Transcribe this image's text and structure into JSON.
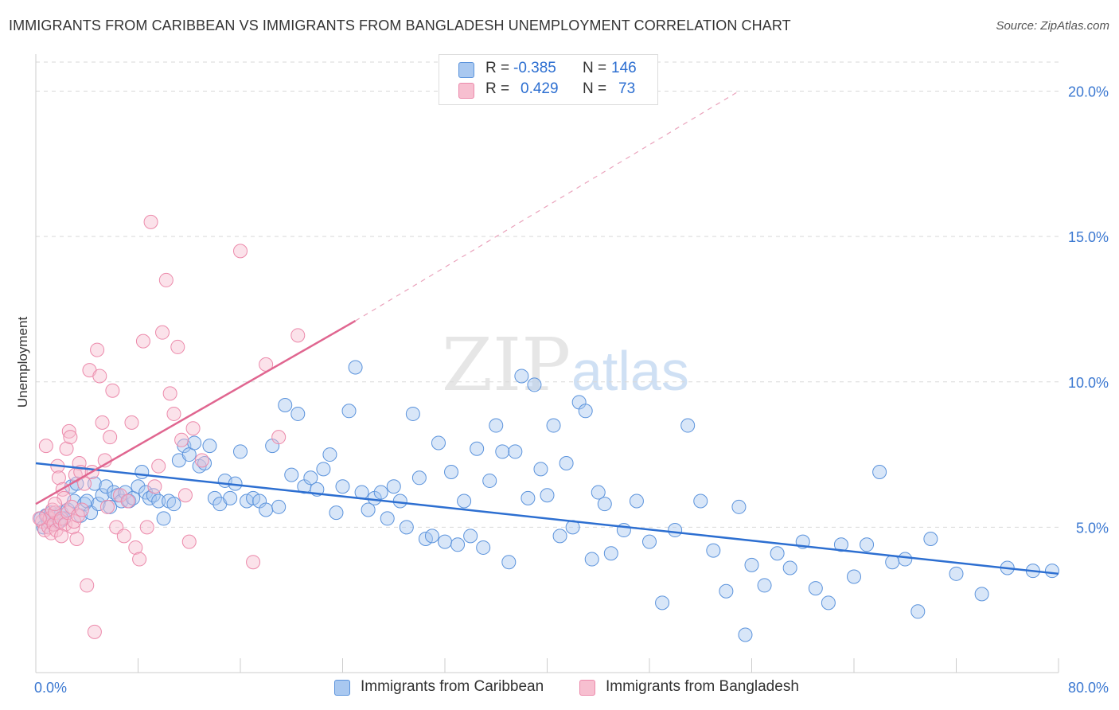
{
  "title": "IMMIGRANTS FROM CARIBBEAN VS IMMIGRANTS FROM BANGLADESH UNEMPLOYMENT CORRELATION CHART",
  "source": "Source: ZipAtlas.com",
  "watermark": {
    "zip": "ZIP",
    "atlas": "atlas"
  },
  "legend": {
    "r_label": "R =",
    "n_label": "N =",
    "series1": {
      "r": "-0.385",
      "n": "146"
    },
    "series2": {
      "r": "0.429",
      "n": "73"
    }
  },
  "colors": {
    "blue_fill": "#a9c8f0",
    "blue_stroke": "#5b93dc",
    "blue_line": "#2d6fd1",
    "pink_fill": "#f7bfd0",
    "pink_stroke": "#ec8aab",
    "pink_line": "#e06690",
    "tick_label": "#3b78d1",
    "grid": "#d9d9d9"
  },
  "chart_data": {
    "type": "scatter",
    "title": "IMMIGRANTS FROM CARIBBEAN VS IMMIGRANTS FROM BANGLADESH UNEMPLOYMENT CORRELATION CHART",
    "xlabel": "",
    "ylabel": "Unemployment",
    "xlim": [
      0,
      80
    ],
    "ylim": [
      0,
      21
    ],
    "x_tick_labels": [
      "0.0%",
      "80.0%"
    ],
    "y_ticks": [
      5,
      10,
      15,
      20
    ],
    "y_tick_labels": [
      "5.0%",
      "10.0%",
      "15.0%",
      "20.0%"
    ],
    "legend_position": "bottom",
    "series": [
      {
        "name": "Immigrants from Caribbean",
        "color": "#5b93dc",
        "trend": {
          "x": [
            0,
            80
          ],
          "y": [
            7.2,
            3.4
          ]
        },
        "points": [
          [
            0.4,
            5.3
          ],
          [
            0.6,
            5.0
          ],
          [
            0.8,
            5.4
          ],
          [
            1.0,
            5.2
          ],
          [
            1.2,
            5.5
          ],
          [
            1.4,
            5.1
          ],
          [
            1.6,
            5.4
          ],
          [
            1.8,
            5.2
          ],
          [
            2.0,
            5.5
          ],
          [
            2.2,
            5.3
          ],
          [
            2.5,
            5.6
          ],
          [
            2.8,
            6.4
          ],
          [
            3.0,
            5.9
          ],
          [
            3.2,
            6.5
          ],
          [
            3.5,
            5.4
          ],
          [
            3.8,
            5.8
          ],
          [
            4.0,
            5.9
          ],
          [
            4.3,
            5.5
          ],
          [
            4.6,
            6.5
          ],
          [
            4.9,
            5.8
          ],
          [
            5.2,
            6.1
          ],
          [
            5.5,
            6.4
          ],
          [
            5.8,
            5.7
          ],
          [
            6.1,
            6.2
          ],
          [
            6.4,
            6.1
          ],
          [
            6.7,
            5.9
          ],
          [
            7.0,
            6.2
          ],
          [
            7.3,
            5.9
          ],
          [
            7.6,
            6.0
          ],
          [
            8.0,
            6.4
          ],
          [
            8.3,
            6.9
          ],
          [
            8.6,
            6.2
          ],
          [
            8.9,
            6.0
          ],
          [
            9.2,
            6.1
          ],
          [
            9.6,
            5.9
          ],
          [
            10.0,
            5.3
          ],
          [
            10.4,
            5.9
          ],
          [
            10.8,
            5.8
          ],
          [
            11.2,
            7.3
          ],
          [
            11.6,
            7.8
          ],
          [
            12.0,
            7.5
          ],
          [
            12.4,
            7.9
          ],
          [
            12.8,
            7.1
          ],
          [
            13.2,
            7.2
          ],
          [
            13.6,
            7.8
          ],
          [
            14.0,
            6.0
          ],
          [
            14.4,
            5.8
          ],
          [
            14.8,
            6.6
          ],
          [
            15.2,
            6.0
          ],
          [
            15.6,
            6.5
          ],
          [
            16.0,
            7.6
          ],
          [
            16.5,
            5.9
          ],
          [
            17.0,
            6.0
          ],
          [
            17.5,
            5.9
          ],
          [
            18.0,
            5.6
          ],
          [
            18.5,
            7.8
          ],
          [
            19.0,
            5.7
          ],
          [
            19.5,
            9.2
          ],
          [
            20.0,
            6.8
          ],
          [
            20.5,
            8.9
          ],
          [
            21.0,
            6.4
          ],
          [
            21.5,
            6.7
          ],
          [
            22.0,
            6.3
          ],
          [
            22.5,
            7.0
          ],
          [
            23.0,
            7.5
          ],
          [
            23.5,
            5.5
          ],
          [
            24.0,
            6.4
          ],
          [
            24.5,
            9.0
          ],
          [
            25.0,
            10.5
          ],
          [
            25.5,
            6.2
          ],
          [
            26.0,
            5.6
          ],
          [
            26.5,
            6.0
          ],
          [
            27.0,
            6.2
          ],
          [
            27.5,
            5.3
          ],
          [
            28.0,
            6.4
          ],
          [
            28.5,
            5.9
          ],
          [
            29.0,
            5.0
          ],
          [
            29.5,
            8.9
          ],
          [
            30.0,
            6.7
          ],
          [
            30.5,
            4.6
          ],
          [
            31.0,
            4.7
          ],
          [
            31.5,
            7.9
          ],
          [
            32.0,
            4.5
          ],
          [
            32.5,
            6.9
          ],
          [
            33.0,
            4.4
          ],
          [
            33.5,
            5.9
          ],
          [
            34.0,
            4.7
          ],
          [
            34.5,
            7.7
          ],
          [
            35.0,
            4.3
          ],
          [
            35.5,
            6.6
          ],
          [
            36.0,
            8.5
          ],
          [
            36.5,
            7.6
          ],
          [
            37.0,
            3.8
          ],
          [
            37.5,
            7.6
          ],
          [
            38.0,
            10.2
          ],
          [
            38.5,
            6.0
          ],
          [
            39.0,
            9.9
          ],
          [
            39.5,
            7.0
          ],
          [
            40.0,
            6.1
          ],
          [
            40.5,
            8.5
          ],
          [
            41.0,
            4.7
          ],
          [
            41.5,
            7.2
          ],
          [
            42.0,
            5.0
          ],
          [
            42.5,
            9.3
          ],
          [
            43.0,
            9.0
          ],
          [
            43.5,
            3.9
          ],
          [
            44.0,
            6.2
          ],
          [
            44.5,
            5.8
          ],
          [
            45.0,
            4.1
          ],
          [
            46.0,
            4.9
          ],
          [
            47.0,
            5.9
          ],
          [
            48.0,
            4.5
          ],
          [
            49.0,
            2.4
          ],
          [
            50.0,
            4.9
          ],
          [
            51.0,
            8.5
          ],
          [
            52.0,
            5.9
          ],
          [
            53.0,
            4.2
          ],
          [
            54.0,
            2.8
          ],
          [
            55.0,
            5.7
          ],
          [
            55.5,
            1.3
          ],
          [
            56.0,
            3.7
          ],
          [
            57.0,
            3.0
          ],
          [
            58.0,
            4.1
          ],
          [
            59.0,
            3.6
          ],
          [
            60.0,
            4.5
          ],
          [
            61.0,
            2.9
          ],
          [
            62.0,
            2.4
          ],
          [
            63.0,
            4.4
          ],
          [
            64.0,
            3.3
          ],
          [
            65.0,
            4.4
          ],
          [
            66.0,
            6.9
          ],
          [
            67.0,
            3.8
          ],
          [
            68.0,
            3.9
          ],
          [
            69.0,
            2.1
          ],
          [
            70.0,
            4.6
          ],
          [
            72.0,
            3.4
          ],
          [
            74.0,
            2.7
          ],
          [
            76.0,
            3.6
          ],
          [
            78.0,
            3.5
          ],
          [
            79.5,
            3.5
          ]
        ]
      },
      {
        "name": "Immigrants from Bangladesh",
        "color": "#ec8aab",
        "trend": {
          "x": [
            0,
            25
          ],
          "y": [
            5.8,
            12.1
          ]
        },
        "trend_dashed": {
          "x": [
            25,
            55
          ],
          "y": [
            12.1,
            20.0
          ]
        },
        "points": [
          [
            0.5,
            5.2
          ],
          [
            0.7,
            4.9
          ],
          [
            0.9,
            5.4
          ],
          [
            1.0,
            5.0
          ],
          [
            1.1,
            5.3
          ],
          [
            1.2,
            4.8
          ],
          [
            1.3,
            5.6
          ],
          [
            1.4,
            5.1
          ],
          [
            1.5,
            5.5
          ],
          [
            1.6,
            4.9
          ],
          [
            1.7,
            7.1
          ],
          [
            1.8,
            6.7
          ],
          [
            1.9,
            5.2
          ],
          [
            2.0,
            5.3
          ],
          [
            2.1,
            6.3
          ],
          [
            2.2,
            6.0
          ],
          [
            2.3,
            5.1
          ],
          [
            2.4,
            7.7
          ],
          [
            2.5,
            5.5
          ],
          [
            2.6,
            8.3
          ],
          [
            2.7,
            8.1
          ],
          [
            2.8,
            5.7
          ],
          [
            2.9,
            5.0
          ],
          [
            3.0,
            5.2
          ],
          [
            3.1,
            6.8
          ],
          [
            3.2,
            4.6
          ],
          [
            3.3,
            5.4
          ],
          [
            3.4,
            7.2
          ],
          [
            3.5,
            6.9
          ],
          [
            3.6,
            5.6
          ],
          [
            3.8,
            6.5
          ],
          [
            4.0,
            3.0
          ],
          [
            4.2,
            10.4
          ],
          [
            4.4,
            6.9
          ],
          [
            4.6,
            1.4
          ],
          [
            4.8,
            11.1
          ],
          [
            5.0,
            10.2
          ],
          [
            5.2,
            8.6
          ],
          [
            5.4,
            7.3
          ],
          [
            5.6,
            5.7
          ],
          [
            5.8,
            8.1
          ],
          [
            6.0,
            9.7
          ],
          [
            6.3,
            5.0
          ],
          [
            6.6,
            6.1
          ],
          [
            6.9,
            4.7
          ],
          [
            7.2,
            5.9
          ],
          [
            7.5,
            8.6
          ],
          [
            7.8,
            4.3
          ],
          [
            8.1,
            3.9
          ],
          [
            8.4,
            11.4
          ],
          [
            8.7,
            5.0
          ],
          [
            9.0,
            15.5
          ],
          [
            9.3,
            6.4
          ],
          [
            9.6,
            7.1
          ],
          [
            9.9,
            11.7
          ],
          [
            10.2,
            13.5
          ],
          [
            10.5,
            9.6
          ],
          [
            10.8,
            8.9
          ],
          [
            11.1,
            11.2
          ],
          [
            11.4,
            8.0
          ],
          [
            11.7,
            6.1
          ],
          [
            12.0,
            4.5
          ],
          [
            12.3,
            8.4
          ],
          [
            13.0,
            7.3
          ],
          [
            16.0,
            14.5
          ],
          [
            17.0,
            3.8
          ],
          [
            18.0,
            10.6
          ],
          [
            19.0,
            8.1
          ],
          [
            20.5,
            11.6
          ],
          [
            0.8,
            7.8
          ],
          [
            1.5,
            5.8
          ],
          [
            2.0,
            4.7
          ],
          [
            0.3,
            5.3
          ]
        ]
      }
    ]
  },
  "bottom_legend": {
    "series1": "Immigrants from Caribbean",
    "series2": "Immigrants from Bangladesh"
  }
}
